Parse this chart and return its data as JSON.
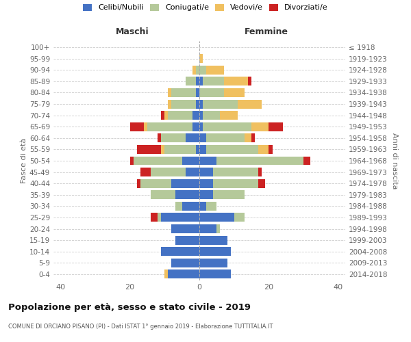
{
  "age_groups": [
    "0-4",
    "5-9",
    "10-14",
    "15-19",
    "20-24",
    "25-29",
    "30-34",
    "35-39",
    "40-44",
    "45-49",
    "50-54",
    "55-59",
    "60-64",
    "65-69",
    "70-74",
    "75-79",
    "80-84",
    "85-89",
    "90-94",
    "95-99",
    "100+"
  ],
  "birth_years": [
    "2014-2018",
    "2009-2013",
    "2004-2008",
    "1999-2003",
    "1994-1998",
    "1989-1993",
    "1984-1988",
    "1979-1983",
    "1974-1978",
    "1969-1973",
    "1964-1968",
    "1959-1963",
    "1954-1958",
    "1949-1953",
    "1944-1948",
    "1939-1943",
    "1934-1938",
    "1929-1933",
    "1924-1928",
    "1919-1923",
    "≤ 1918"
  ],
  "colors": {
    "celibi": "#4472c4",
    "coniugati": "#b5c99a",
    "vedovi": "#f0c060",
    "divorziati": "#cc2222"
  },
  "males": {
    "celibi": [
      9,
      8,
      11,
      7,
      8,
      11,
      5,
      7,
      8,
      4,
      5,
      1,
      4,
      2,
      2,
      1,
      1,
      1,
      0,
      0,
      0
    ],
    "coniugati": [
      0,
      0,
      0,
      0,
      0,
      1,
      2,
      7,
      9,
      10,
      14,
      9,
      7,
      13,
      7,
      7,
      7,
      3,
      1,
      0,
      0
    ],
    "vedovi": [
      1,
      0,
      0,
      0,
      0,
      0,
      0,
      0,
      0,
      0,
      0,
      1,
      0,
      1,
      1,
      1,
      1,
      0,
      1,
      0,
      0
    ],
    "divorziati": [
      0,
      0,
      0,
      0,
      0,
      2,
      0,
      0,
      1,
      3,
      1,
      7,
      1,
      4,
      1,
      0,
      0,
      0,
      0,
      0,
      0
    ]
  },
  "females": {
    "celibi": [
      9,
      8,
      9,
      8,
      5,
      10,
      2,
      4,
      4,
      4,
      5,
      2,
      2,
      1,
      1,
      1,
      0,
      1,
      0,
      0,
      0
    ],
    "coniugati": [
      0,
      0,
      0,
      0,
      1,
      3,
      3,
      9,
      13,
      13,
      25,
      15,
      11,
      14,
      5,
      10,
      7,
      6,
      2,
      0,
      0
    ],
    "vedovi": [
      0,
      0,
      0,
      0,
      0,
      0,
      0,
      0,
      0,
      0,
      0,
      3,
      2,
      5,
      5,
      7,
      6,
      7,
      5,
      1,
      0
    ],
    "divorziati": [
      0,
      0,
      0,
      0,
      0,
      0,
      0,
      0,
      2,
      1,
      2,
      1,
      1,
      4,
      0,
      0,
      0,
      1,
      0,
      0,
      0
    ]
  },
  "xlim": 42,
  "title": "Popolazione per età, sesso e stato civile - 2019",
  "subtitle": "COMUNE DI ORCIANO PISANO (PI) - Dati ISTAT 1° gennaio 2019 - Elaborazione TUTTITALIA.IT",
  "ylabel_left": "Fasce di età",
  "ylabel_right": "Anni di nascita",
  "xlabel_left": "Maschi",
  "xlabel_right": "Femmine",
  "legend_labels": [
    "Celibi/Nubili",
    "Coniugati/e",
    "Vedovi/e",
    "Divorziati/e"
  ],
  "bg_color": "#f5f5f5"
}
